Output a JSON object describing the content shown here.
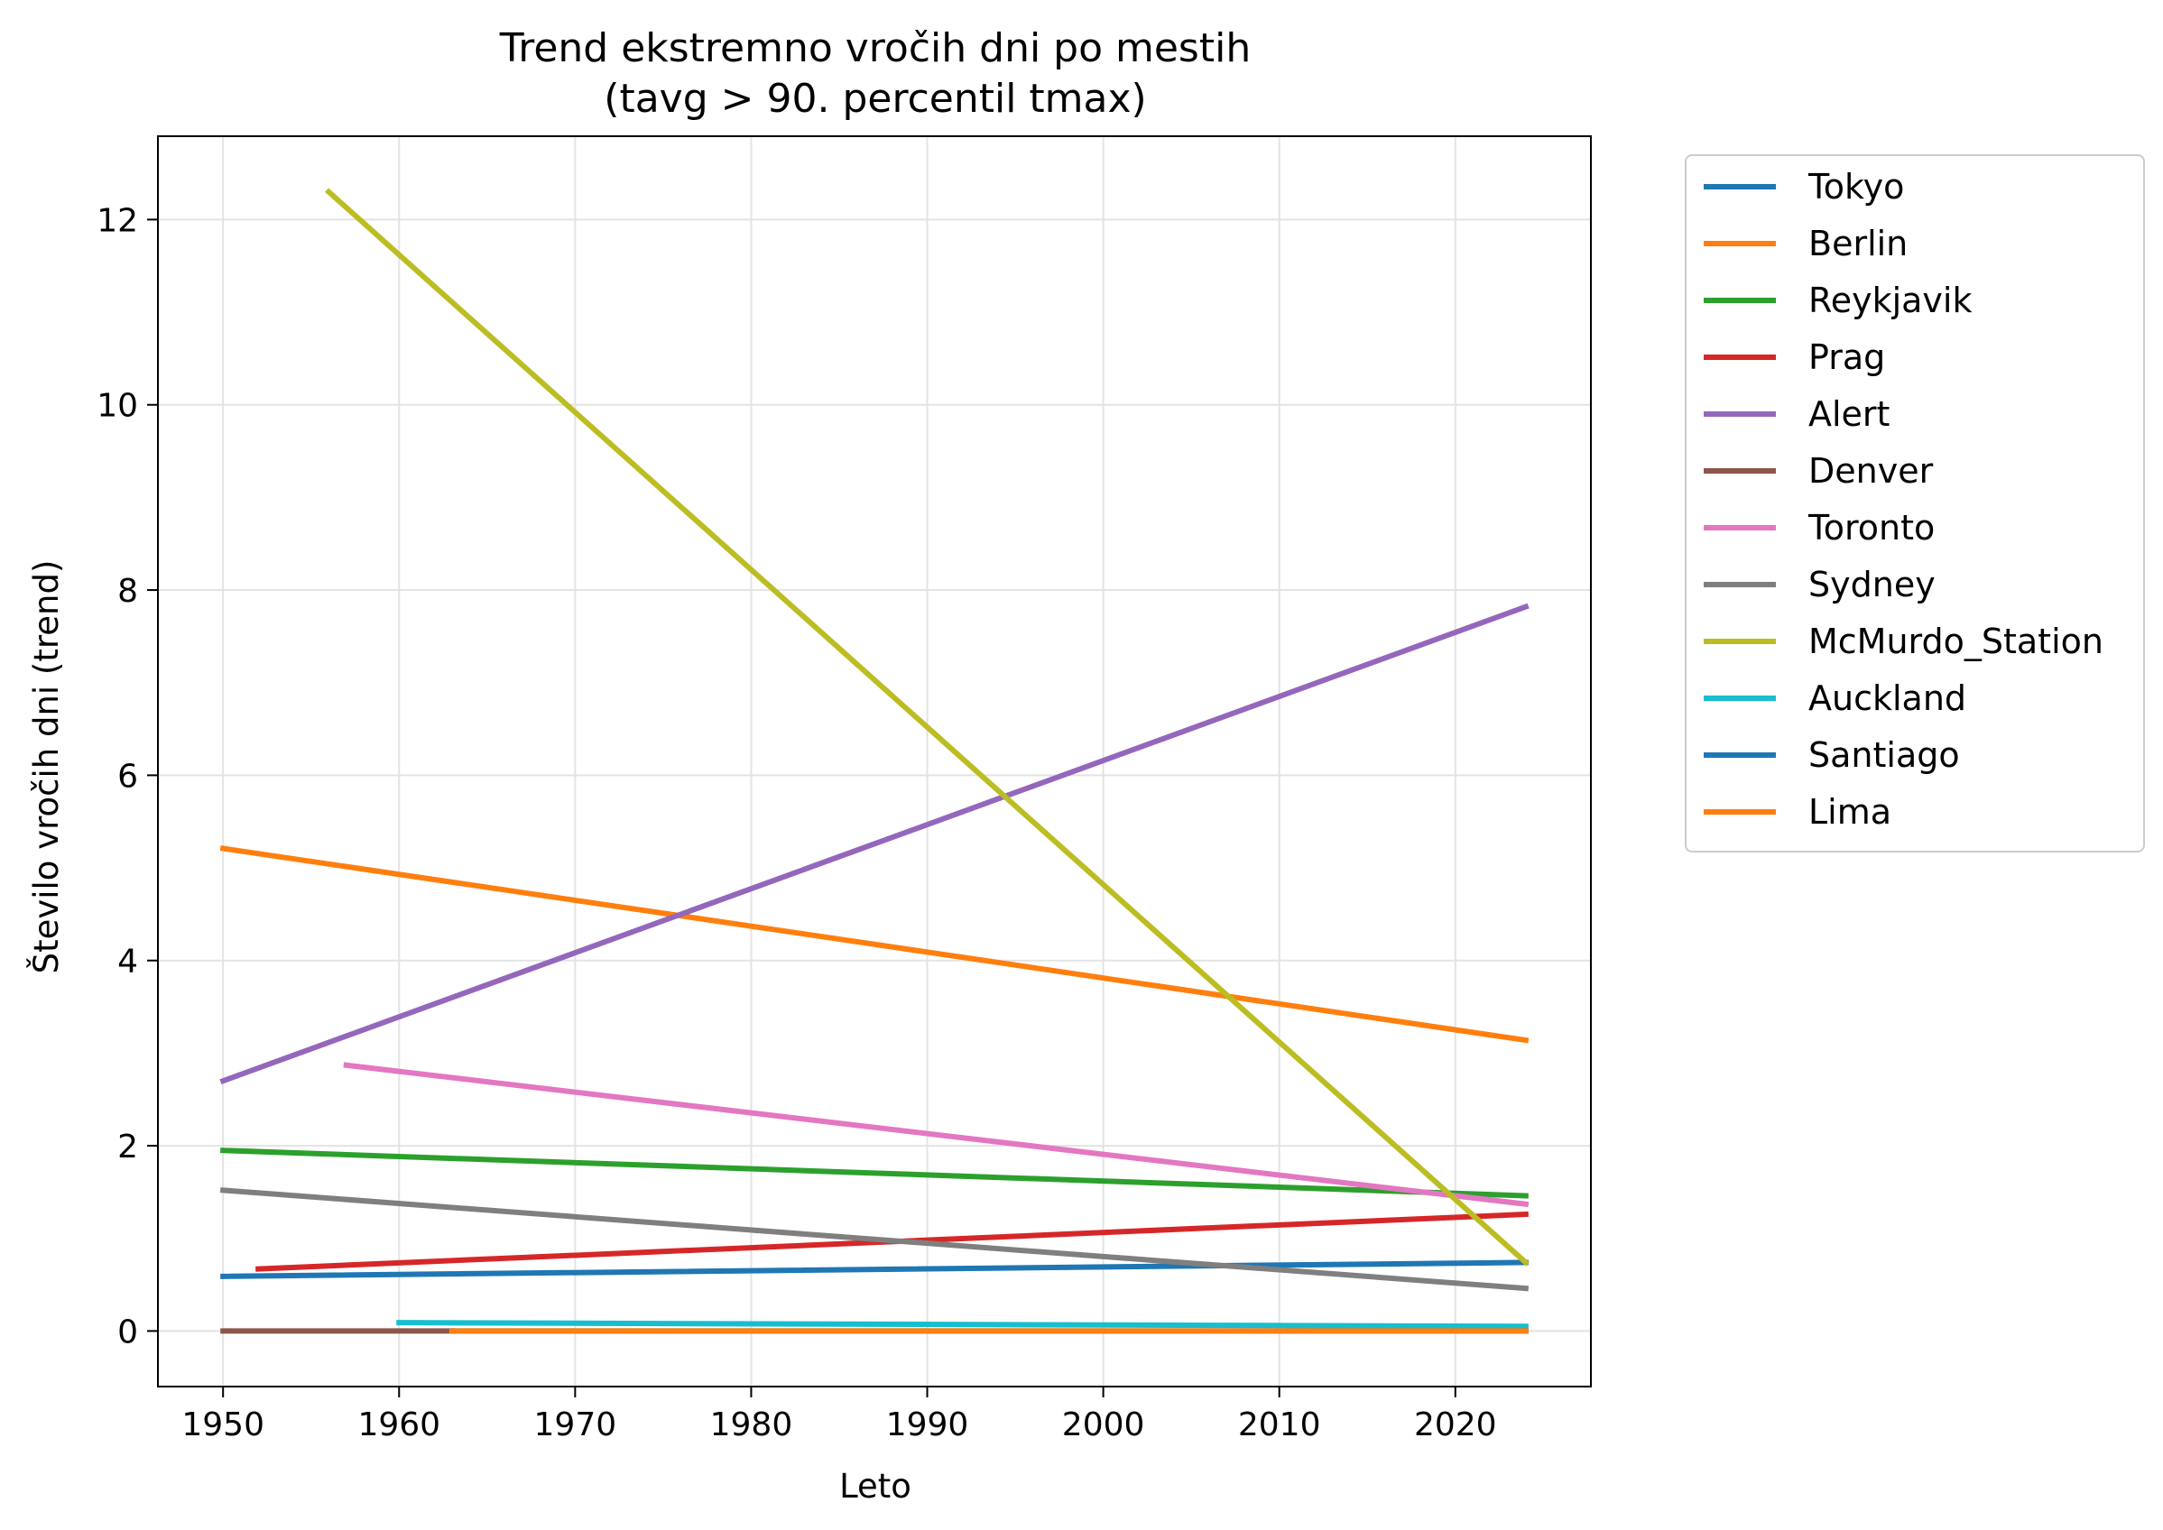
{
  "chart_data": {
    "type": "line",
    "title": "Trend ekstremno vročih dni po mestih",
    "subtitle": "(tavg > 90. percentil tmax)",
    "xlabel": "Leto",
    "ylabel": "Število vročih dni (trend)",
    "xlim": [
      1946.3,
      2027.7
    ],
    "ylim": [
      -0.6,
      12.9
    ],
    "xticks": [
      1950,
      1960,
      1970,
      1980,
      1990,
      2000,
      2010,
      2020
    ],
    "yticks": [
      0,
      2,
      4,
      6,
      8,
      10,
      12
    ],
    "grid": true,
    "legend_position": "outside-right",
    "series": [
      {
        "name": "Tokyo",
        "color": "#1f77b4",
        "x": [
          1950,
          2024
        ],
        "y": [
          0.59,
          0.74
        ]
      },
      {
        "name": "Berlin",
        "color": "#ff7f0e",
        "x": [
          1950,
          2024
        ],
        "y": [
          5.21,
          3.14
        ]
      },
      {
        "name": "Reykjavik",
        "color": "#2ca02c",
        "x": [
          1950,
          2024
        ],
        "y": [
          1.95,
          1.46
        ]
      },
      {
        "name": "Prag",
        "color": "#d62728",
        "x": [
          1952,
          2024
        ],
        "y": [
          0.67,
          1.26
        ]
      },
      {
        "name": "Alert",
        "color": "#9467bd",
        "x": [
          1950,
          2024
        ],
        "y": [
          2.7,
          7.82
        ]
      },
      {
        "name": "Denver",
        "color": "#8c564b",
        "x": [
          1950,
          1963
        ],
        "y": [
          0.0,
          0.0
        ]
      },
      {
        "name": "Toronto",
        "color": "#e377c2",
        "x": [
          1957,
          2024
        ],
        "y": [
          2.87,
          1.37
        ]
      },
      {
        "name": "Sydney",
        "color": "#7f7f7f",
        "x": [
          1950,
          2024
        ],
        "y": [
          1.52,
          0.46
        ]
      },
      {
        "name": "McMurdo_Station",
        "color": "#bcbd22",
        "x": [
          1956,
          2024
        ],
        "y": [
          12.3,
          0.74
        ]
      },
      {
        "name": "Auckland",
        "color": "#17becf",
        "x": [
          1960,
          2024
        ],
        "y": [
          0.09,
          0.05
        ]
      },
      {
        "name": "Santiago",
        "color": "#1f77b4",
        "x": [
          1963,
          2024
        ],
        "y": [
          0.0,
          0.0
        ]
      },
      {
        "name": "Lima",
        "color": "#ff7f0e",
        "x": [
          1963,
          2024
        ],
        "y": [
          0.0,
          0.0
        ]
      }
    ]
  }
}
